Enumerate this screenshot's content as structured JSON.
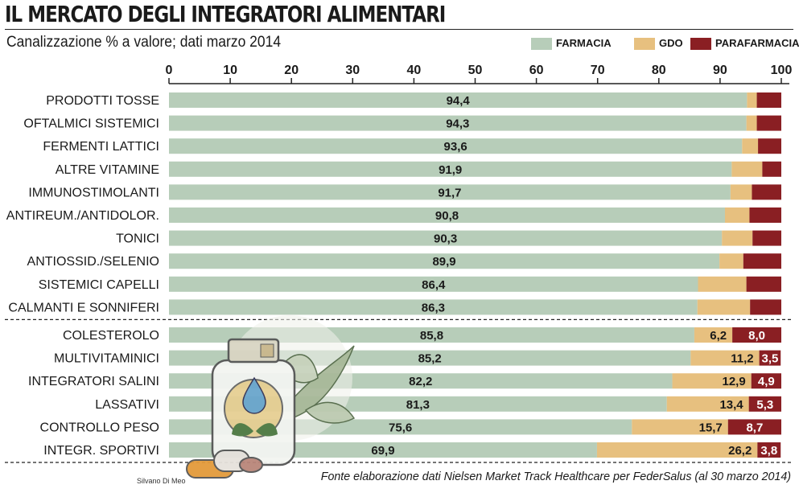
{
  "title": "IL MERCATO DEGLI INTEGRATORI ALIMENTARI",
  "subtitle": "Canalizzazione % a valore; dati marzo 2014",
  "legend": [
    {
      "label": "FARMACIA",
      "color": "#b7cdb9"
    },
    {
      "label": "GDO",
      "color": "#e7c07f"
    },
    {
      "label": "PARAFARMACIA",
      "color": "#8a1f23"
    }
  ],
  "credit": "Silvano Di Meo",
  "source": "Fonte elaborazione dati Nielsen Market Track Healthcare per FederSalus (al 30 marzo 2014)",
  "chart_data": {
    "type": "bar",
    "orientation": "horizontal",
    "stacked": true,
    "xlim": [
      0,
      100
    ],
    "xticks": [
      0,
      10,
      20,
      30,
      40,
      50,
      60,
      70,
      80,
      90,
      100
    ],
    "categories": [
      "PRODOTTI TOSSE",
      "OFTALMICI SISTEMICI",
      "FERMENTI LATTICI",
      "ALTRE VITAMINE",
      "IMMUNOSTIMOLANTI",
      "ANTIREUM./ANTIDOLOR.",
      "TONICI",
      "ANTIOSSID./SELENIO",
      "SISTEMICI CAPELLI",
      "CALMANTI E SONNIFERI",
      "COLESTEROLO",
      "MULTIVITAMINICI",
      "INTEGRATORI SALINI",
      "LASSATIVI",
      "CONTROLLO PESO",
      "INTEGR. SPORTIVI"
    ],
    "series": [
      {
        "name": "FARMACIA",
        "values": [
          94.4,
          94.3,
          93.6,
          91.9,
          91.7,
          90.8,
          90.3,
          89.9,
          86.4,
          86.3,
          85.8,
          85.2,
          82.2,
          81.3,
          75.6,
          69.9
        ],
        "labels": [
          "94,4",
          "94,3",
          "93,6",
          "91,9",
          "91,7",
          "90,8",
          "90,3",
          "89,9",
          "86,4",
          "86,3",
          "85,8",
          "85,2",
          "82,2",
          "81,3",
          "75,6",
          "69,9"
        ]
      },
      {
        "name": "GDO",
        "values": [
          1.6,
          1.7,
          2.6,
          5.0,
          3.5,
          4.0,
          5.0,
          3.9,
          7.9,
          8.6,
          6.2,
          11.2,
          12.9,
          13.4,
          15.7,
          26.2
        ],
        "labels": [
          "",
          "",
          "",
          "",
          "",
          "",
          "",
          "",
          "",
          "",
          "6,2",
          "11,2",
          "12,9",
          "13,4",
          "15,7",
          "26,2"
        ]
      },
      {
        "name": "PARAFARMACIA",
        "values": [
          4.0,
          4.0,
          3.8,
          3.1,
          4.8,
          5.2,
          4.7,
          6.2,
          5.7,
          5.1,
          8.0,
          3.5,
          4.9,
          5.3,
          8.7,
          3.8
        ],
        "labels": [
          "",
          "",
          "",
          "",
          "",
          "",
          "",
          "",
          "",
          "",
          "8,0",
          "3,5",
          "4,9",
          "5,3",
          "8,7",
          "3,8"
        ]
      }
    ],
    "group_separator_after": "CALMANTI E SONNIFERI"
  }
}
